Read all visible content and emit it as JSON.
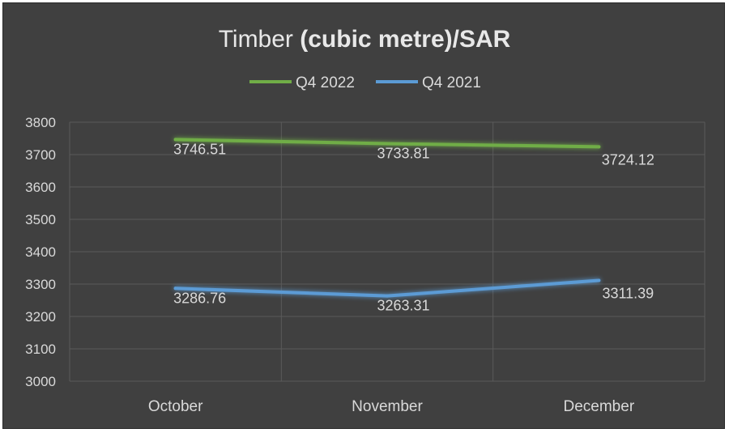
{
  "chart_data": {
    "type": "line",
    "title": "Timber ",
    "title_bold": "(cubic metre)/SAR",
    "categories": [
      "October",
      "November",
      "December"
    ],
    "series": [
      {
        "name": "Q4 2022",
        "color": "#70ad47",
        "values": [
          3746.51,
          3733.81,
          3724.12
        ],
        "labels": [
          "3746.51",
          "3733.81",
          "3724.12"
        ]
      },
      {
        "name": "Q4 2021",
        "color": "#5b9bd5",
        "values": [
          3286.76,
          3263.31,
          3311.39
        ],
        "labels": [
          "3286.76",
          "3263.31",
          "3311.39"
        ]
      }
    ],
    "ylim": [
      3000,
      3800
    ],
    "yticks": [
      "3000",
      "3100",
      "3200",
      "3300",
      "3400",
      "3500",
      "3600",
      "3700",
      "3800"
    ],
    "grid": true,
    "legend": "top"
  }
}
